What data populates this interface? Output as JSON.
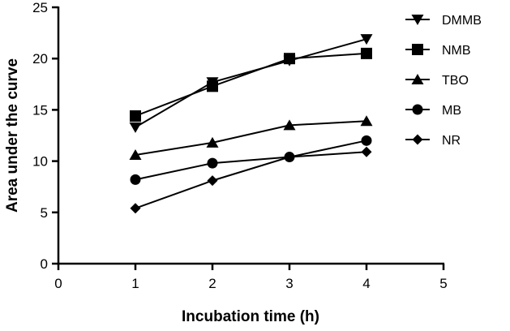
{
  "chart_data": {
    "type": "line",
    "title": "",
    "xlabel": "Incubation time (h)",
    "ylabel": "Area under the curve",
    "xlim": [
      0,
      5
    ],
    "ylim": [
      0,
      25
    ],
    "xticks": [
      0,
      1,
      2,
      3,
      4,
      5
    ],
    "yticks": [
      0,
      5,
      10,
      15,
      20,
      25
    ],
    "grid": false,
    "legend_position": "top-right",
    "x": [
      1,
      2,
      3,
      4
    ],
    "series": [
      {
        "name": "DMMB",
        "marker": "triangle-down",
        "values": [
          13.3,
          17.7,
          19.8,
          21.9
        ]
      },
      {
        "name": "NMB",
        "marker": "square",
        "values": [
          14.4,
          17.3,
          20.0,
          20.5
        ]
      },
      {
        "name": "TBO",
        "marker": "triangle-up",
        "values": [
          10.6,
          11.8,
          13.5,
          13.9
        ]
      },
      {
        "name": "MB",
        "marker": "circle",
        "values": [
          8.2,
          9.8,
          10.4,
          12.0
        ]
      },
      {
        "name": "NR",
        "marker": "diamond",
        "values": [
          5.4,
          8.1,
          10.4,
          10.9
        ]
      }
    ],
    "colors": {
      "line": "#000000"
    }
  }
}
